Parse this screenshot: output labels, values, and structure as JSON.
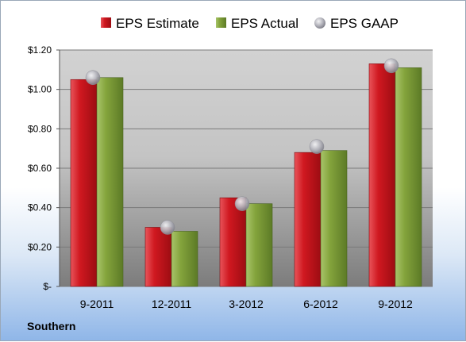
{
  "chart_data": {
    "type": "bar",
    "categories": [
      "9-2011",
      "12-2011",
      "3-2012",
      "6-2012",
      "9-2012"
    ],
    "series": [
      {
        "name": "EPS Estimate",
        "values": [
          1.05,
          0.3,
          0.45,
          0.68,
          1.13
        ],
        "color": "#c8141c",
        "kind": "bar"
      },
      {
        "name": "EPS Actual",
        "values": [
          1.06,
          0.28,
          0.42,
          0.69,
          1.11
        ],
        "color": "#7f9f38",
        "kind": "bar"
      },
      {
        "name": "EPS GAAP",
        "values": [
          1.06,
          0.3,
          0.42,
          0.71,
          1.12
        ],
        "color": "#a8a8b0",
        "kind": "marker"
      }
    ],
    "y_ticks": [
      {
        "value": 0,
        "label": "$-"
      },
      {
        "value": 0.2,
        "label": "$0.20"
      },
      {
        "value": 0.4,
        "label": "$0.40"
      },
      {
        "value": 0.6,
        "label": "$0.60"
      },
      {
        "value": 0.8,
        "label": "$0.80"
      },
      {
        "value": 1.0,
        "label": "$1.00"
      },
      {
        "value": 1.2,
        "label": "$1.20"
      }
    ],
    "ylim": [
      0,
      1.2
    ],
    "grid": true,
    "legend_position": "top"
  },
  "company": "Southern"
}
